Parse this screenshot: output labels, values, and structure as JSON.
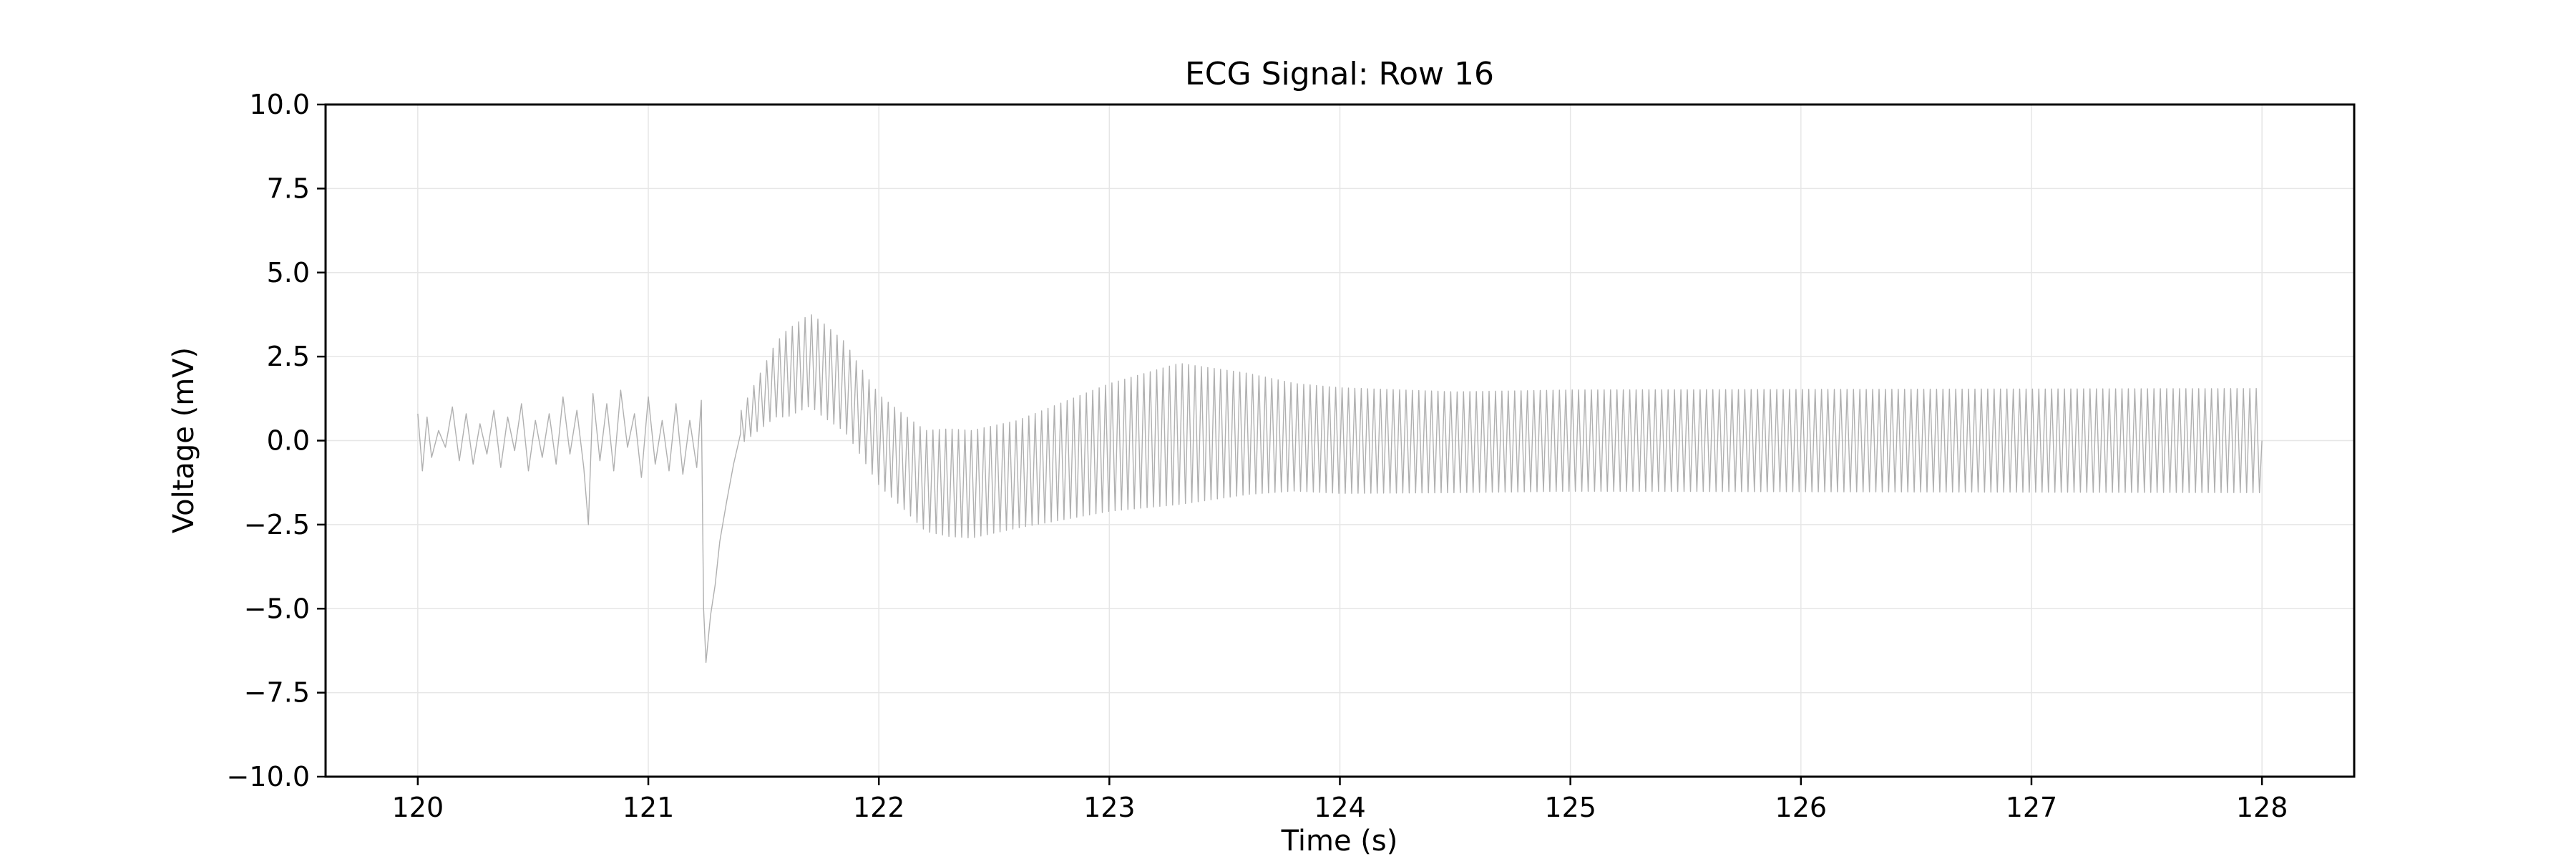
{
  "chart_data": {
    "type": "line",
    "title": "ECG Signal: Row 16",
    "xlabel": "Time (s)",
    "ylabel": "Voltage (mV)",
    "xlim": [
      119.6,
      128.4
    ],
    "ylim": [
      -10,
      10
    ],
    "xticks": [
      120,
      121,
      122,
      123,
      124,
      125,
      126,
      127,
      128
    ],
    "xtick_labels": [
      "120",
      "121",
      "122",
      "123",
      "124",
      "125",
      "126",
      "127",
      "128"
    ],
    "yticks": [
      10,
      7.5,
      5,
      2.5,
      0,
      -2.5,
      -5,
      -7.5,
      -10
    ],
    "ytick_labels": [
      "10.0",
      "7.5",
      "5.0",
      "2.5",
      "0.0",
      "−2.5",
      "−5.0",
      "−7.5",
      "−10.0"
    ],
    "grid": true,
    "series": [
      {
        "color": "#b0b0b0",
        "x": [
          120.0,
          120.02,
          120.04,
          120.06,
          120.09,
          120.12,
          120.15,
          120.18,
          120.21,
          120.24,
          120.27,
          120.3,
          120.33,
          120.36,
          120.39,
          120.42,
          120.45,
          120.48,
          120.51,
          120.54,
          120.57,
          120.6,
          120.63,
          120.66,
          120.69,
          120.72,
          120.74,
          120.76,
          120.79,
          120.82,
          120.85,
          120.88,
          120.91,
          120.94,
          120.97,
          121.0,
          121.03,
          121.06,
          121.09,
          121.12,
          121.15,
          121.18,
          121.21,
          121.23,
          121.24,
          121.25,
          121.27,
          121.29,
          121.31,
          121.34,
          121.37,
          121.4
        ],
        "y": [
          0.8,
          -0.9,
          0.7,
          -0.5,
          0.3,
          -0.2,
          1.0,
          -0.6,
          0.8,
          -0.7,
          0.5,
          -0.4,
          0.9,
          -0.8,
          0.7,
          -0.3,
          1.1,
          -0.9,
          0.6,
          -0.5,
          0.8,
          -0.7,
          1.3,
          -0.4,
          0.9,
          -0.8,
          -2.5,
          1.4,
          -0.6,
          1.1,
          -0.9,
          1.5,
          -0.2,
          0.8,
          -1.1,
          1.3,
          -0.7,
          0.6,
          -0.9,
          1.1,
          -1.0,
          0.6,
          -0.8,
          1.2,
          -5.0,
          -6.6,
          -5.2,
          -4.3,
          -3.0,
          -1.8,
          -0.7,
          0.2
        ]
      }
    ],
    "oscillation": {
      "x_start": 121.4,
      "x_end": 128.0,
      "cycles_per_second": 36,
      "center_line": {
        "x": [
          121.4,
          121.55,
          121.7,
          121.85,
          122.0,
          122.2,
          122.4,
          122.6,
          122.8,
          123.0,
          123.3,
          123.6,
          124.0,
          124.5,
          125.0,
          126.0,
          127.0,
          128.0
        ],
        "y": [
          0.4,
          1.8,
          2.4,
          1.6,
          0.0,
          -1.2,
          -1.3,
          -1.0,
          -0.6,
          -0.2,
          0.2,
          0.2,
          0.0,
          -0.05,
          0.0,
          0.0,
          0.0,
          0.0
        ]
      },
      "half_amplitude": {
        "x": [
          121.4,
          121.6,
          121.75,
          121.9,
          122.1,
          122.3,
          122.6,
          123.0,
          123.3,
          123.8,
          124.5,
          128.0
        ],
        "y": [
          0.5,
          1.3,
          1.4,
          1.3,
          1.4,
          1.6,
          1.6,
          1.9,
          2.1,
          1.6,
          1.5,
          1.55
        ]
      }
    }
  }
}
